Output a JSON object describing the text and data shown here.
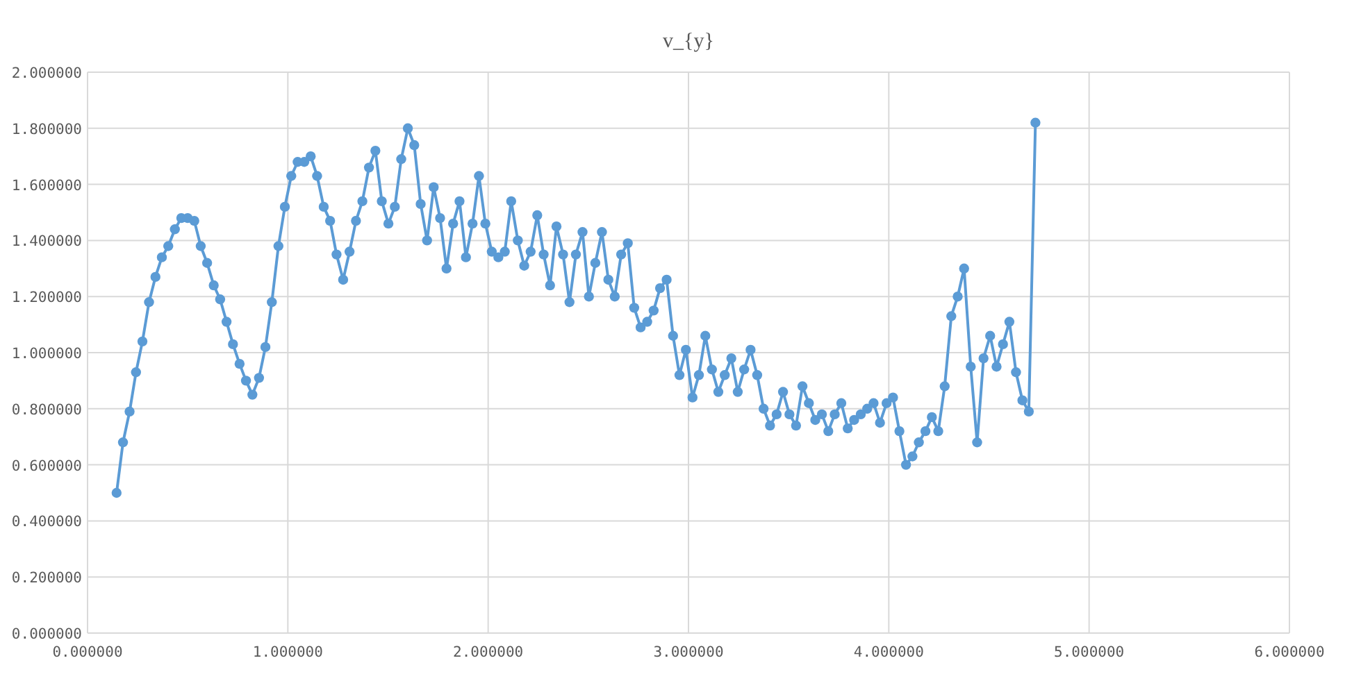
{
  "chart_data": {
    "type": "line",
    "title": "v_{y}",
    "x": [
      0.145,
      0.177,
      0.21,
      0.242,
      0.274,
      0.307,
      0.339,
      0.371,
      0.403,
      0.436,
      0.468,
      0.5,
      0.533,
      0.565,
      0.597,
      0.63,
      0.662,
      0.694,
      0.726,
      0.759,
      0.791,
      0.823,
      0.856,
      0.888,
      0.92,
      0.953,
      0.985,
      1.017,
      1.049,
      1.082,
      1.114,
      1.146,
      1.179,
      1.211,
      1.243,
      1.276,
      1.308,
      1.34,
      1.372,
      1.405,
      1.437,
      1.469,
      1.502,
      1.534,
      1.566,
      1.599,
      1.631,
      1.663,
      1.695,
      1.728,
      1.76,
      1.792,
      1.825,
      1.857,
      1.889,
      1.922,
      1.954,
      1.986,
      2.018,
      2.051,
      2.083,
      2.115,
      2.148,
      2.18,
      2.212,
      2.245,
      2.277,
      2.309,
      2.341,
      2.374,
      2.406,
      2.438,
      2.471,
      2.503,
      2.535,
      2.568,
      2.6,
      2.632,
      2.664,
      2.697,
      2.729,
      2.761,
      2.794,
      2.826,
      2.858,
      2.891,
      2.923,
      2.955,
      2.987,
      3.02,
      3.052,
      3.084,
      3.117,
      3.149,
      3.181,
      3.214,
      3.246,
      3.278,
      3.31,
      3.343,
      3.375,
      3.407,
      3.44,
      3.472,
      3.504,
      3.537,
      3.569,
      3.601,
      3.633,
      3.666,
      3.698,
      3.73,
      3.763,
      3.795,
      3.827,
      3.86,
      3.892,
      3.924,
      3.956,
      3.989,
      4.021,
      4.053,
      4.086,
      4.118,
      4.15,
      4.183,
      4.215,
      4.247,
      4.279,
      4.312,
      4.344,
      4.376,
      4.409,
      4.441,
      4.473,
      4.506,
      4.538,
      4.57,
      4.602,
      4.635,
      4.667,
      4.699,
      4.732
    ],
    "series": [
      {
        "color": "#5b9bd5",
        "values": [
          0.5,
          0.68,
          0.79,
          0.93,
          1.04,
          1.18,
          1.27,
          1.34,
          1.38,
          1.44,
          1.48,
          1.48,
          1.47,
          1.38,
          1.32,
          1.24,
          1.19,
          1.11,
          1.03,
          0.96,
          0.9,
          0.85,
          0.91,
          1.02,
          1.18,
          1.38,
          1.52,
          1.63,
          1.68,
          1.68,
          1.7,
          1.63,
          1.52,
          1.47,
          1.35,
          1.26,
          1.36,
          1.47,
          1.54,
          1.66,
          1.72,
          1.54,
          1.46,
          1.52,
          1.69,
          1.8,
          1.74,
          1.53,
          1.4,
          1.59,
          1.48,
          1.3,
          1.46,
          1.54,
          1.34,
          1.46,
          1.63,
          1.46,
          1.36,
          1.34,
          1.36,
          1.54,
          1.4,
          1.31,
          1.36,
          1.49,
          1.35,
          1.24,
          1.45,
          1.35,
          1.18,
          1.35,
          1.43,
          1.2,
          1.32,
          1.43,
          1.26,
          1.2,
          1.35,
          1.39,
          1.16,
          1.09,
          1.11,
          1.15,
          1.23,
          1.26,
          1.06,
          0.92,
          1.01,
          0.84,
          0.92,
          1.06,
          0.94,
          0.86,
          0.92,
          0.98,
          0.86,
          0.94,
          1.01,
          0.92,
          0.8,
          0.74,
          0.78,
          0.86,
          0.78,
          0.74,
          0.88,
          0.82,
          0.76,
          0.78,
          0.72,
          0.78,
          0.82,
          0.73,
          0.76,
          0.78,
          0.8,
          0.82,
          0.75,
          0.82,
          0.84,
          0.72,
          0.6,
          0.63,
          0.68,
          0.72,
          0.77,
          0.72,
          0.88,
          1.13,
          1.2,
          1.3,
          0.95,
          0.68,
          0.98,
          1.06,
          0.95,
          1.03,
          1.11,
          0.93,
          0.83,
          0.79,
          1.82
        ]
      }
    ],
    "xlim": [
      0,
      6
    ],
    "xticks": [
      {
        "value": 0,
        "label": "0.000000"
      },
      {
        "value": 1,
        "label": "1.000000"
      },
      {
        "value": 2,
        "label": "2.000000"
      },
      {
        "value": 3,
        "label": "3.000000"
      },
      {
        "value": 4,
        "label": "4.000000"
      },
      {
        "value": 5,
        "label": "5.000000"
      },
      {
        "value": 6,
        "label": "6.000000"
      }
    ],
    "ylim": [
      0,
      2
    ],
    "yticks": [
      {
        "value": 0,
        "label": "0.000000"
      },
      {
        "value": 0.2,
        "label": "0.200000"
      },
      {
        "value": 0.4,
        "label": "0.400000"
      },
      {
        "value": 0.6,
        "label": "0.600000"
      },
      {
        "value": 0.8,
        "label": "0.800000"
      },
      {
        "value": 1,
        "label": "1.000000"
      },
      {
        "value": 1.2,
        "label": "1.200000"
      },
      {
        "value": 1.4,
        "label": "1.400000"
      },
      {
        "value": 1.6,
        "label": "1.600000"
      },
      {
        "value": 1.8,
        "label": "1.800000"
      },
      {
        "value": 2,
        "label": "2.000000"
      }
    ],
    "grid": true,
    "marker": "circle",
    "line_style": "solid"
  }
}
